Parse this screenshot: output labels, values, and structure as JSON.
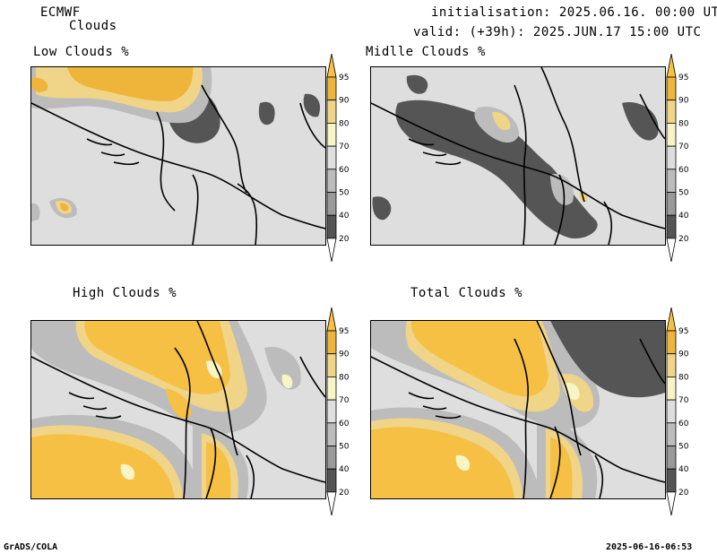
{
  "header": {
    "model": "ECMWF",
    "product": "Clouds",
    "initialisation": "initialisation: 2025.06.16. 00:00 UTC",
    "valid": "valid: (+39h): 2025.JUN.17 15:00 UTC"
  },
  "panels": [
    {
      "id": "low",
      "title": "Low Clouds %"
    },
    {
      "id": "middle",
      "title": "Midlle Clouds %"
    },
    {
      "id": "high",
      "title": "High Clouds %"
    },
    {
      "id": "total",
      "title": "Total Clouds %"
    }
  ],
  "colorbar": {
    "levels": [
      "95",
      "90",
      "80",
      "70",
      "60",
      "50",
      "40",
      "20"
    ],
    "colors": {
      "c95": "#f5c044",
      "c90": "#efb43a",
      "c80": "#f0d487",
      "c70": "#f7f4c6",
      "c60": "#dedede",
      "c50": "#bcbcbc",
      "c40": "#9a9a9a",
      "c20": "#555555",
      "c0": "#ffffff"
    }
  },
  "footer": {
    "left": "GrADS/COLA",
    "right": "2025-06-16-06:53"
  }
}
